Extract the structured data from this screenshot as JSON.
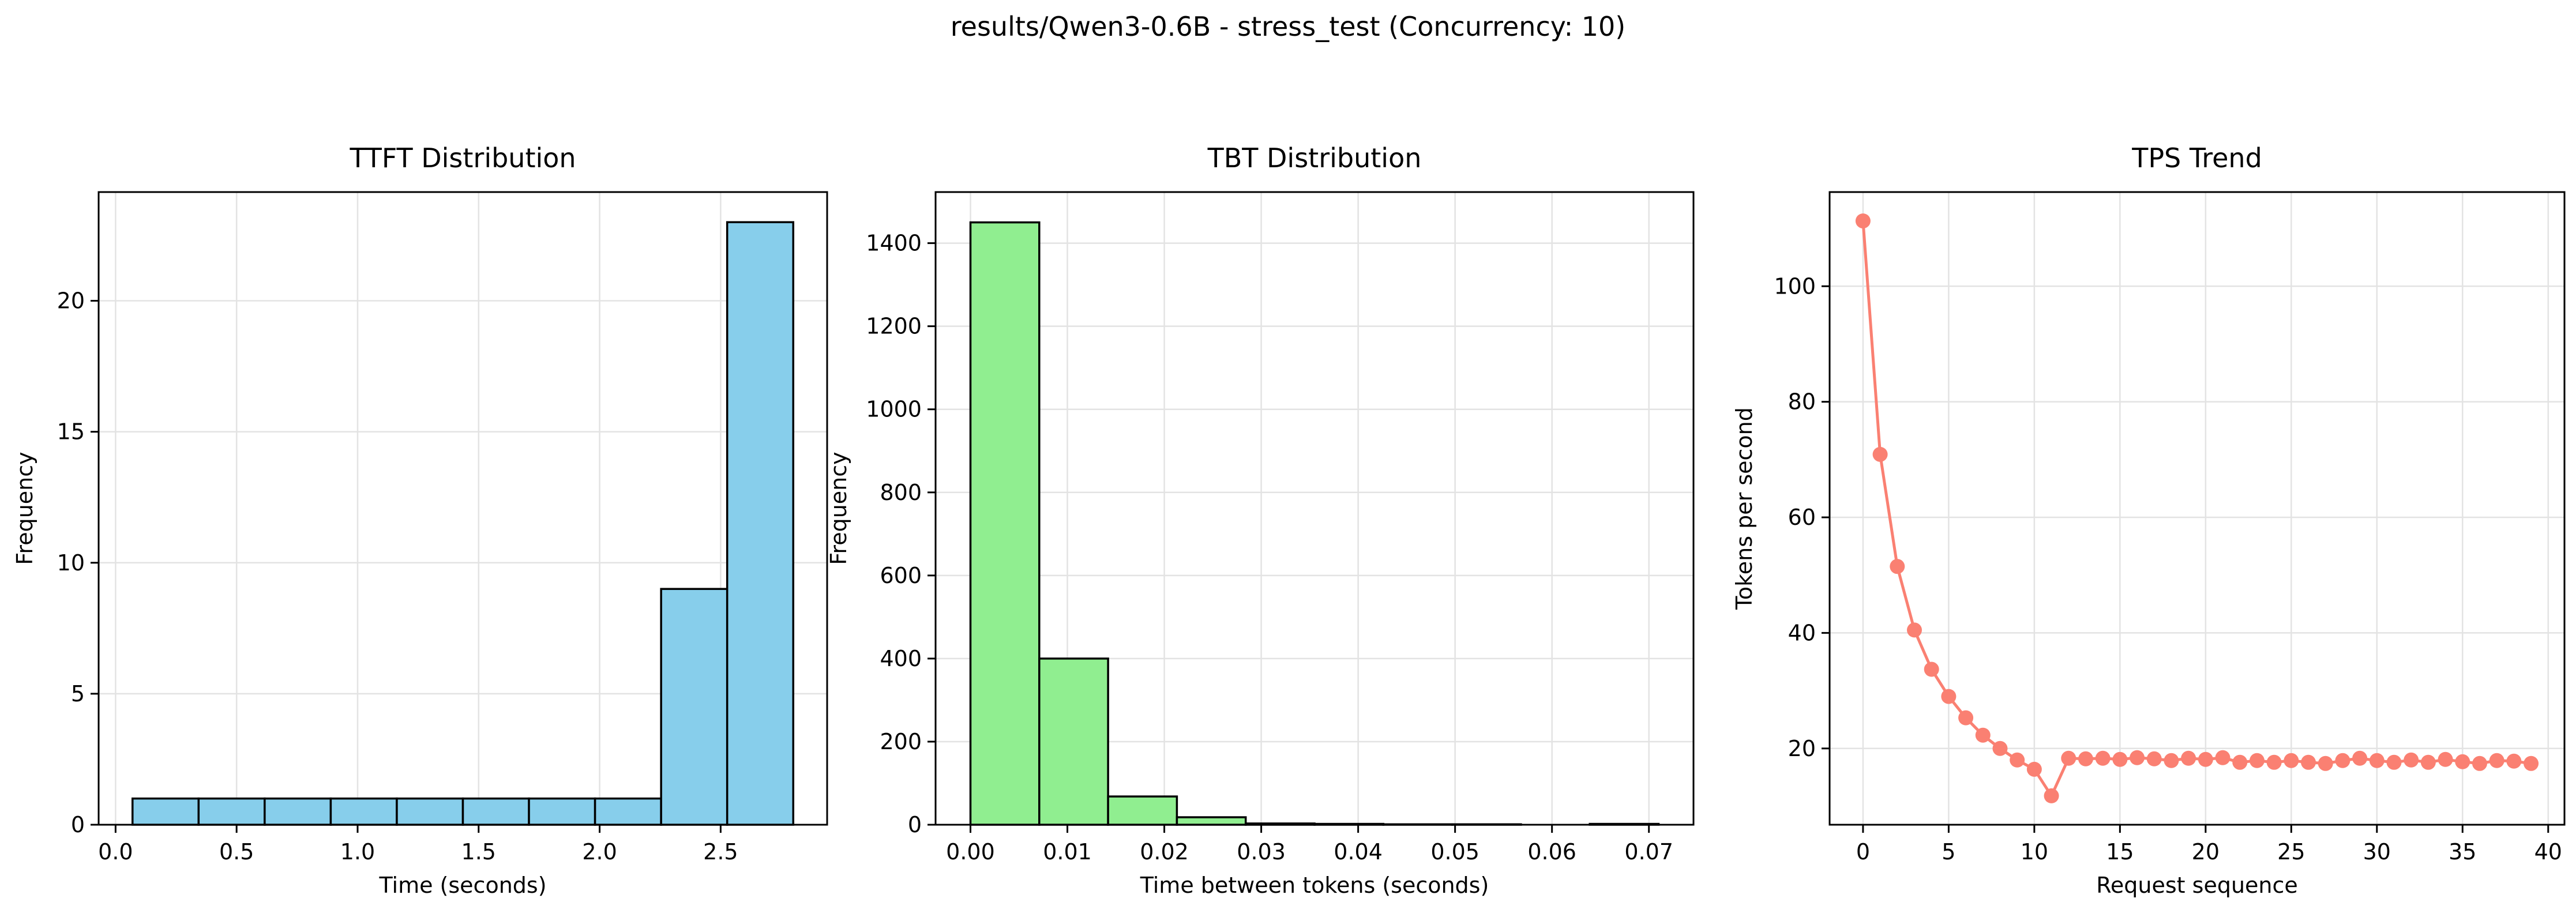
{
  "figure_title": "results/Qwen3-0.6B - stress_test (Concurrency: 10)",
  "chart_data": [
    {
      "type": "histogram",
      "title": "TTFT Distribution",
      "xlabel": "Time (seconds)",
      "ylabel": "Frequency",
      "bar_color": "#87CEEB",
      "edge_color": "#000000",
      "bin_edges": [
        0.07,
        0.343,
        0.616,
        0.889,
        1.162,
        1.435,
        1.708,
        1.981,
        2.254,
        2.527,
        2.8
      ],
      "counts": [
        1,
        1,
        1,
        1,
        1,
        1,
        1,
        1,
        9,
        23
      ],
      "xlim": [
        -0.07,
        2.94
      ],
      "ylim": [
        0,
        24.15
      ],
      "xticks": [
        0.0,
        0.5,
        1.0,
        1.5,
        2.0,
        2.5
      ],
      "xtick_labels": [
        "0.0",
        "0.5",
        "1.0",
        "1.5",
        "2.0",
        "2.5"
      ],
      "yticks": [
        0,
        5,
        10,
        15,
        20
      ],
      "ytick_labels": [
        "0",
        "5",
        "10",
        "15",
        "20"
      ],
      "grid": true
    },
    {
      "type": "histogram",
      "title": "TBT Distribution",
      "xlabel": "Time between tokens (seconds)",
      "ylabel": "Frequency",
      "bar_color": "#90EE90",
      "edge_color": "#000000",
      "bin_edges": [
        0.0,
        0.0071,
        0.0142,
        0.0213,
        0.0284,
        0.0355,
        0.0426,
        0.0497,
        0.0568,
        0.0639,
        0.071
      ],
      "counts": [
        1450,
        400,
        68,
        18,
        3,
        2,
        1,
        1,
        0,
        2
      ],
      "xlim": [
        -0.0036,
        0.0746
      ],
      "ylim": [
        0,
        1523
      ],
      "xticks": [
        0.0,
        0.01,
        0.02,
        0.03,
        0.04,
        0.05,
        0.06,
        0.07
      ],
      "xtick_labels": [
        "0.00",
        "0.01",
        "0.02",
        "0.03",
        "0.04",
        "0.05",
        "0.06",
        "0.07"
      ],
      "yticks": [
        0,
        200,
        400,
        600,
        800,
        1000,
        1200,
        1400
      ],
      "ytick_labels": [
        "0",
        "200",
        "400",
        "600",
        "800",
        "1000",
        "1200",
        "1400"
      ],
      "grid": true
    },
    {
      "type": "line",
      "title": "TPS Trend",
      "xlabel": "Request sequence",
      "ylabel": "Tokens per second",
      "line_color": "#FA8072",
      "marker": "circle",
      "x": [
        0,
        1,
        2,
        3,
        4,
        5,
        6,
        7,
        8,
        9,
        10,
        11,
        12,
        13,
        14,
        15,
        16,
        17,
        18,
        19,
        20,
        21,
        22,
        23,
        24,
        25,
        26,
        27,
        28,
        29,
        30,
        31,
        32,
        33,
        34,
        35,
        36,
        37,
        38,
        39
      ],
      "y": [
        111.3,
        70.9,
        51.5,
        40.5,
        33.7,
        29.0,
        25.3,
        22.3,
        20.0,
        18.0,
        16.4,
        11.8,
        18.3,
        18.2,
        18.3,
        18.1,
        18.4,
        18.2,
        17.9,
        18.3,
        18.1,
        18.4,
        17.6,
        17.9,
        17.6,
        17.9,
        17.6,
        17.4,
        17.9,
        18.3,
        17.9,
        17.6,
        18.0,
        17.6,
        18.1,
        17.7,
        17.4,
        17.9,
        17.8,
        17.4
      ],
      "xlim": [
        -1.95,
        40.95
      ],
      "ylim": [
        6.8,
        116.3
      ],
      "xticks": [
        0,
        5,
        10,
        15,
        20,
        25,
        30,
        35,
        40
      ],
      "xtick_labels": [
        "0",
        "5",
        "10",
        "15",
        "20",
        "25",
        "30",
        "35",
        "40"
      ],
      "yticks": [
        20,
        40,
        60,
        80,
        100
      ],
      "ytick_labels": [
        "20",
        "40",
        "60",
        "80",
        "100"
      ],
      "grid": true
    }
  ]
}
